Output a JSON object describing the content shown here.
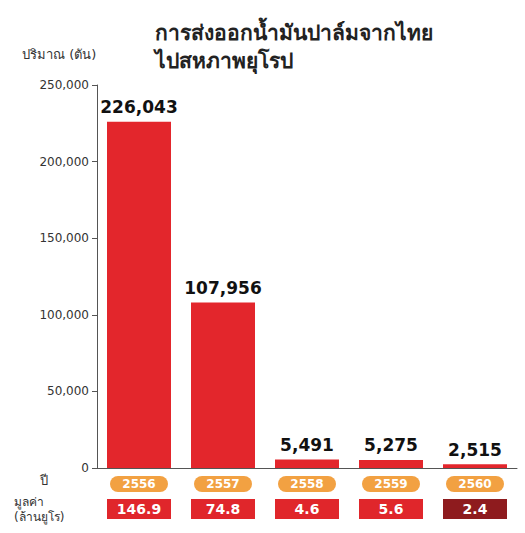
{
  "chart_data": {
    "type": "bar",
    "title": "การส่งออกน้ำมันปาล์มจากไทย ไปสหภาพยุโรป",
    "ylabel": "ปริมาณ (ตัน)",
    "xlabel": "ปี",
    "categories": [
      "2556",
      "2557",
      "2558",
      "2559",
      "2560"
    ],
    "values": [
      226043,
      107956,
      5491,
      5275,
      2515
    ],
    "value_labels": [
      "226,043",
      "107,956",
      "5,491",
      "5,275",
      "2,515"
    ],
    "color": "#e3262c",
    "ylim": [
      0,
      250000
    ],
    "yticks": [
      0,
      {
        "value": 50000,
        "label": "50,000"
      },
      {
        "value": 100000,
        "label": "100,000"
      },
      {
        "value": 150000,
        "label": "150,000"
      },
      {
        "value": 200000,
        "label": "200,000"
      },
      {
        "value": 250000,
        "label": "250,000"
      }
    ],
    "grid": false,
    "data_labels": true,
    "secondary_values": {
      "name": "มูลค่า (ล้านยูโร)",
      "values": [
        146.9,
        74.8,
        4.6,
        5.6,
        2.4
      ]
    }
  }
}
